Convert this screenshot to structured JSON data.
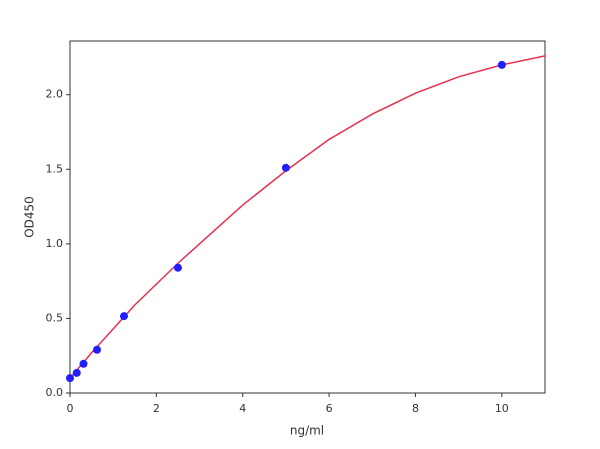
{
  "chart_data": {
    "type": "scatter",
    "x_label": "ng/ml",
    "y_label": "OD450",
    "xlim": [
      0,
      11
    ],
    "ylim": [
      0,
      2.36
    ],
    "xticks": [
      0,
      2,
      4,
      6,
      8,
      10
    ],
    "yticks": [
      {
        "value": 0,
        "label": "0.0"
      },
      0.5,
      {
        "value": 1,
        "label": "1.0"
      },
      1.5,
      {
        "value": 2,
        "label": "2.0"
      }
    ],
    "series": [
      {
        "style": "line",
        "color": "#e8304f",
        "x": [
          0,
          0.5,
          1,
          1.5,
          2,
          2.5,
          3,
          3.5,
          4,
          5,
          6,
          7,
          8,
          9,
          10,
          11
        ],
        "values": [
          0.1,
          0.27,
          0.43,
          0.59,
          0.73,
          0.87,
          1.0,
          1.13,
          1.26,
          1.49,
          1.7,
          1.87,
          2.01,
          2.12,
          2.2,
          2.26
        ]
      },
      {
        "style": "marker",
        "color": "#1f1fff",
        "x": [
          0,
          0.156,
          0.3125,
          0.625,
          1.25,
          2.5,
          5,
          10
        ],
        "values": [
          0.1,
          0.135,
          0.196,
          0.29,
          0.515,
          0.84,
          1.51,
          2.2
        ]
      }
    ]
  }
}
